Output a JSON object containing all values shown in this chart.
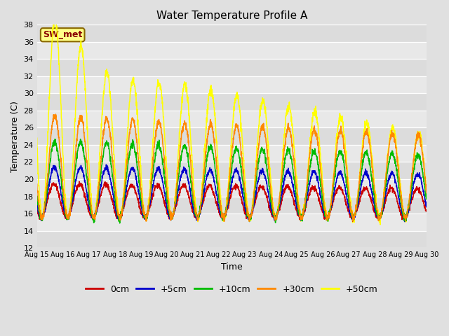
{
  "title": "Water Temperature Profile A",
  "xlabel": "Time",
  "ylabel": "Temperature (C)",
  "ylim": [
    12,
    38
  ],
  "yticks": [
    12,
    14,
    16,
    18,
    20,
    22,
    24,
    26,
    28,
    30,
    32,
    34,
    36,
    38
  ],
  "x_labels": [
    "Aug 15",
    "Aug 16",
    "Aug 17",
    "Aug 18",
    "Aug 19",
    "Aug 20",
    "Aug 21",
    "Aug 22",
    "Aug 23",
    "Aug 24",
    "Aug 25",
    "Aug 26",
    "Aug 27",
    "Aug 28",
    "Aug 29",
    "Aug 30"
  ],
  "n_days": 15,
  "series_colors": {
    "0cm": "#cc0000",
    "+5cm": "#0000cc",
    "+10cm": "#00bb00",
    "+30cm": "#ff8800",
    "+50cm": "#ffff00"
  },
  "sw_met_label": "SW_met",
  "sw_met_color": "#880000",
  "sw_met_bg": "#ffff88",
  "sw_met_edge": "#886600",
  "fig_bg": "#e0e0e0",
  "stripe_even": "#dcdcdc",
  "stripe_odd": "#e8e8e8",
  "grid_line": "#ffffff"
}
